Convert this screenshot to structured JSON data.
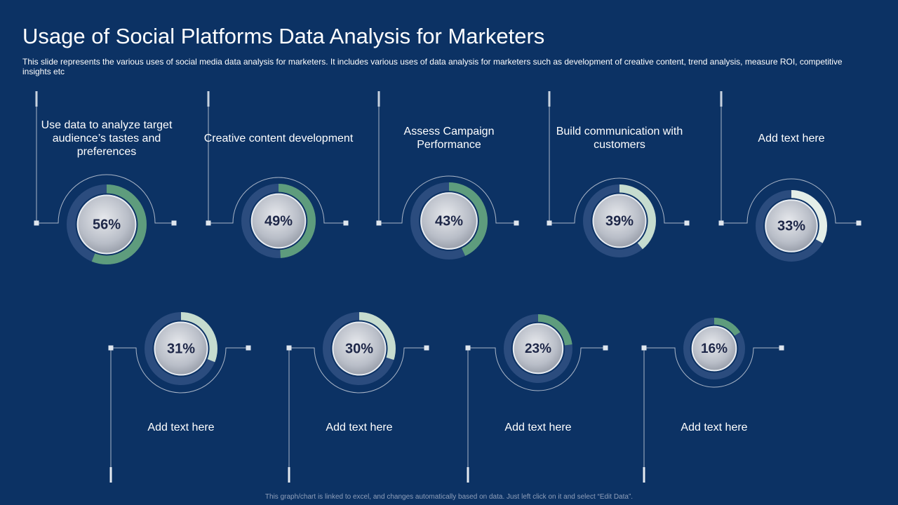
{
  "title": "Usage of Social Platforms Data Analysis for Marketers",
  "subtitle": "This slide represents the various  uses of social media data analysis for  marketers. It includes various  uses of data analysis for marketers such as development  of creative content, trend analysis, measure ROI,  competitive  insights etc",
  "footnote": "This graph/chart is linked to excel, and changes automatically based on data. Just left click on it and select “Edit Data”.",
  "chart_data": [
    {
      "type": "donut",
      "title": "Use data to analyze target audience’s tastes and preferences",
      "values": [
        56
      ],
      "value_labels": [
        "56%"
      ],
      "color": "#5e9c7d"
    },
    {
      "type": "donut",
      "title": "Creative content development",
      "values": [
        49
      ],
      "value_labels": [
        "49%"
      ],
      "color": "#5e9c7d"
    },
    {
      "type": "donut",
      "title": "Assess Campaign Performance",
      "values": [
        43
      ],
      "value_labels": [
        "43%"
      ],
      "color": "#5e9c7d"
    },
    {
      "type": "donut",
      "title": "Build communication with customers",
      "values": [
        39
      ],
      "value_labels": [
        "39%"
      ],
      "color": "#c6dccf"
    },
    {
      "type": "donut",
      "title": "Add text here",
      "values": [
        33
      ],
      "value_labels": [
        "33%"
      ],
      "color": "#e4eee8"
    },
    {
      "type": "donut",
      "title": "Add text here",
      "values": [
        31
      ],
      "value_labels": [
        "31%"
      ],
      "color": "#c6dccf"
    },
    {
      "type": "donut",
      "title": "Add text here",
      "values": [
        30
      ],
      "value_labels": [
        "30%"
      ],
      "color": "#c6dccf"
    },
    {
      "type": "donut",
      "title": "Add text here",
      "values": [
        23
      ],
      "value_labels": [
        "23%"
      ],
      "color": "#5e9c7d"
    },
    {
      "type": "donut",
      "title": "Add text here",
      "values": [
        16
      ],
      "value_labels": [
        "16%"
      ],
      "color": "#5e9c7d"
    }
  ]
}
